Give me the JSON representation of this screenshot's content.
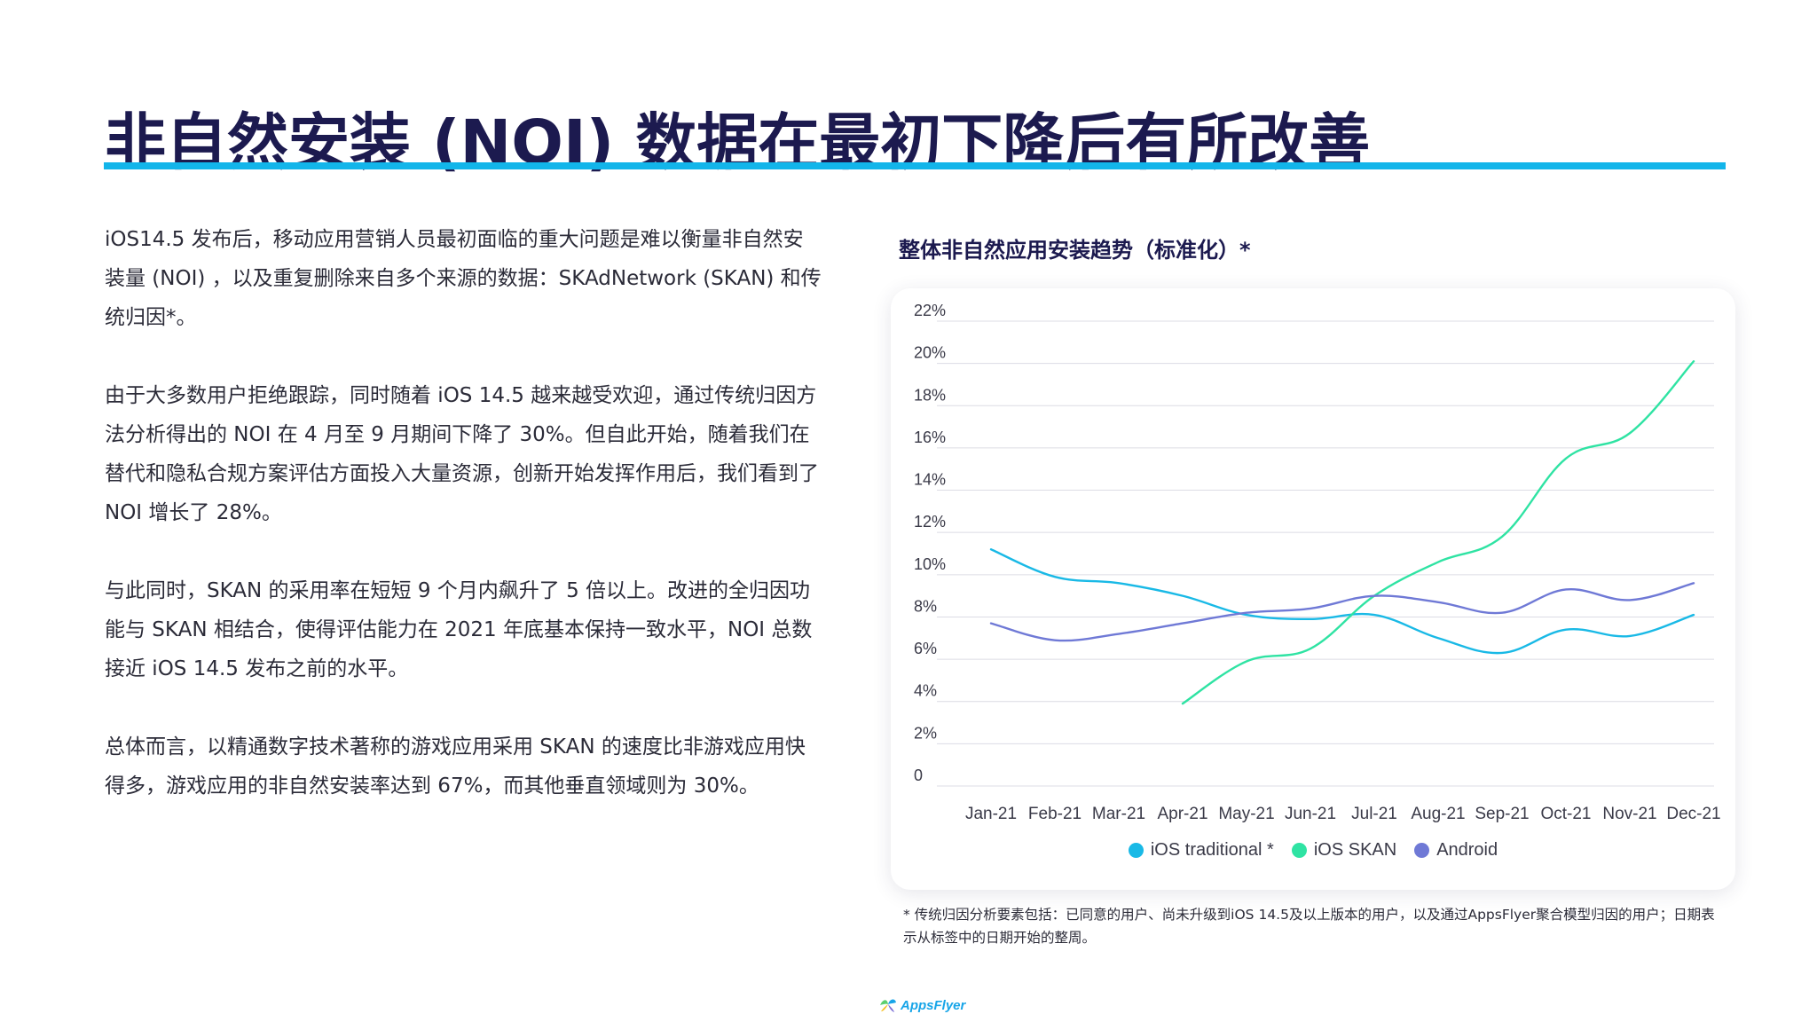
{
  "title": "非自然安装 (NOI) 数据在最初下降后有所改善",
  "paragraphs": [
    "iOS14.5 发布后，移动应用营销人员最初面临的重大问题是难以衡量非自然安装量 (NOI) ，以及重复删除来自多个来源的数据：SKAdNetwork (SKAN) 和传统归因*。",
    "由于大多数用户拒绝跟踪，同时随着 iOS 14.5 越来越受欢迎，通过传统归因方法分析得出的 NOI 在 4 月至 9 月期间下降了 30%。但自此开始，随着我们在替代和隐私合规方案评估方面投入大量资源，创新开始发挥作用后，我们看到了 NOI 增长了 28%。",
    "与此同时，SKAN 的采用率在短短 9 个月内飙升了 5 倍以上。改进的全归因功能与 SKAN 相结合，使得评估能力在 2021 年底基本保持一致水平，NOI 总数接近 iOS 14.5 发布之前的水平。",
    "总体而言，以精通数字技术著称的游戏应用采用 SKAN 的速度比非游戏应用快得多，游戏应用的非自然安装率达到 67%，而其他垂直领域则为 30%。"
  ],
  "chart_data": {
    "type": "line",
    "title": "整体非自然应用安装趋势（标准化）*",
    "categories": [
      "Jan-21",
      "Feb-21",
      "Mar-21",
      "Apr-21",
      "May-21",
      "Jun-21",
      "Jul-21",
      "Aug-21",
      "Sep-21",
      "Oct-21",
      "Nov-21",
      "Dec-21"
    ],
    "y_ticks": [
      "0",
      "2%",
      "4%",
      "6%",
      "8%",
      "10%",
      "12%",
      "14%",
      "16%",
      "18%",
      "20%",
      "22%"
    ],
    "ylim": [
      0,
      22
    ],
    "grid": true,
    "legend_position": "bottom",
    "series": [
      {
        "name": "iOS traditional *",
        "color": "#19b9e6",
        "values": [
          11.2,
          9.9,
          9.6,
          9.0,
          8.1,
          7.9,
          8.1,
          7.0,
          6.3,
          7.4,
          7.1,
          8.1
        ]
      },
      {
        "name": "iOS SKAN",
        "color": "#2fe3a3",
        "values": [
          null,
          null,
          null,
          3.9,
          5.9,
          6.5,
          9.0,
          10.6,
          11.8,
          15.5,
          16.7,
          20.1
        ]
      },
      {
        "name": "Android",
        "color": "#6f79d6",
        "values": [
          7.7,
          6.9,
          7.2,
          7.7,
          8.2,
          8.4,
          9.0,
          8.7,
          8.2,
          9.3,
          8.8,
          9.6
        ]
      }
    ]
  },
  "footnote": "* 传统归因分析要素包括：已同意的用户、尚未升级到iOS 14.5及以上版本的用户，以及通过AppsFlyer聚合模型归因的用户；日期表示从标签中的日期开始的整周。",
  "logo_text": "AppsFlyer",
  "logo_icon": "appsflyer-logo-icon"
}
